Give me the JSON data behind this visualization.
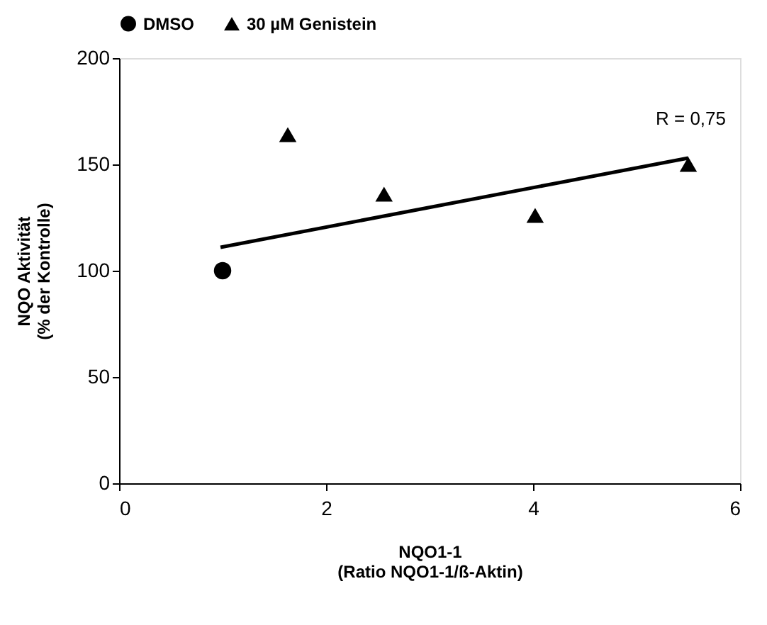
{
  "chart_data": {
    "type": "scatter",
    "xlabel": "NQO1-1\n(Ratio NQO1-1/ß-Aktin)",
    "ylabel": "NQO Aktivität\n(% der Kontrolle)",
    "xlim": [
      0,
      6
    ],
    "xticks": [
      0,
      2,
      4,
      6
    ],
    "ylim": [
      0,
      200
    ],
    "yticks": [
      0,
      50,
      100,
      150,
      200
    ],
    "grid": false,
    "legend": "top",
    "series": [
      {
        "name": "DMSO",
        "color": "#000000",
        "marker": "circle",
        "x": [
          1.0
        ],
        "values": [
          100
        ]
      },
      {
        "name": "30 µM Genistein",
        "color": "#000000",
        "marker": "triangle",
        "x": [
          1.63,
          2.56,
          4.02,
          5.5
        ],
        "values": [
          164,
          136,
          126,
          150
        ]
      },
      {
        "type": "line",
        "color": "#000000",
        "marker": "none",
        "x": [
          0.98,
          5.5
        ],
        "values": [
          111,
          153
        ]
      }
    ],
    "annotations": [
      "R = 0,75"
    ]
  }
}
